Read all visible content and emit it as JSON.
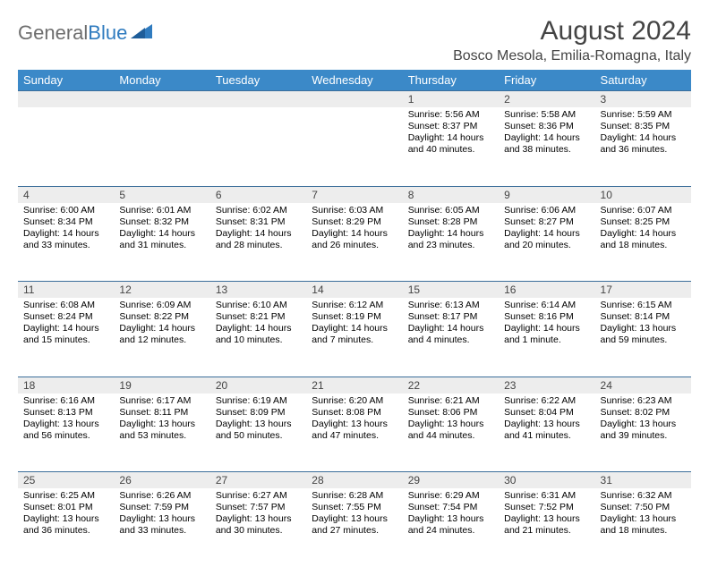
{
  "logo": {
    "part1": "General",
    "part2": "Blue"
  },
  "title": "August 2024",
  "location": "Bosco Mesola, Emilia-Romagna, Italy",
  "colors": {
    "header_bg": "#3b89c8",
    "header_text": "#ffffff",
    "daynum_bg": "#ededed",
    "row_border": "#3b6e9a",
    "logo_gray": "#6e6e6e",
    "logo_blue": "#2f7bbf",
    "title_color": "#444444",
    "body_text": "#000000"
  },
  "day_headers": [
    "Sunday",
    "Monday",
    "Tuesday",
    "Wednesday",
    "Thursday",
    "Friday",
    "Saturday"
  ],
  "weeks": [
    [
      null,
      null,
      null,
      null,
      {
        "num": "1",
        "sunrise": "5:56 AM",
        "sunset": "8:37 PM",
        "daylight": "14 hours and 40 minutes."
      },
      {
        "num": "2",
        "sunrise": "5:58 AM",
        "sunset": "8:36 PM",
        "daylight": "14 hours and 38 minutes."
      },
      {
        "num": "3",
        "sunrise": "5:59 AM",
        "sunset": "8:35 PM",
        "daylight": "14 hours and 36 minutes."
      }
    ],
    [
      {
        "num": "4",
        "sunrise": "6:00 AM",
        "sunset": "8:34 PM",
        "daylight": "14 hours and 33 minutes."
      },
      {
        "num": "5",
        "sunrise": "6:01 AM",
        "sunset": "8:32 PM",
        "daylight": "14 hours and 31 minutes."
      },
      {
        "num": "6",
        "sunrise": "6:02 AM",
        "sunset": "8:31 PM",
        "daylight": "14 hours and 28 minutes."
      },
      {
        "num": "7",
        "sunrise": "6:03 AM",
        "sunset": "8:29 PM",
        "daylight": "14 hours and 26 minutes."
      },
      {
        "num": "8",
        "sunrise": "6:05 AM",
        "sunset": "8:28 PM",
        "daylight": "14 hours and 23 minutes."
      },
      {
        "num": "9",
        "sunrise": "6:06 AM",
        "sunset": "8:27 PM",
        "daylight": "14 hours and 20 minutes."
      },
      {
        "num": "10",
        "sunrise": "6:07 AM",
        "sunset": "8:25 PM",
        "daylight": "14 hours and 18 minutes."
      }
    ],
    [
      {
        "num": "11",
        "sunrise": "6:08 AM",
        "sunset": "8:24 PM",
        "daylight": "14 hours and 15 minutes."
      },
      {
        "num": "12",
        "sunrise": "6:09 AM",
        "sunset": "8:22 PM",
        "daylight": "14 hours and 12 minutes."
      },
      {
        "num": "13",
        "sunrise": "6:10 AM",
        "sunset": "8:21 PM",
        "daylight": "14 hours and 10 minutes."
      },
      {
        "num": "14",
        "sunrise": "6:12 AM",
        "sunset": "8:19 PM",
        "daylight": "14 hours and 7 minutes."
      },
      {
        "num": "15",
        "sunrise": "6:13 AM",
        "sunset": "8:17 PM",
        "daylight": "14 hours and 4 minutes."
      },
      {
        "num": "16",
        "sunrise": "6:14 AM",
        "sunset": "8:16 PM",
        "daylight": "14 hours and 1 minute."
      },
      {
        "num": "17",
        "sunrise": "6:15 AM",
        "sunset": "8:14 PM",
        "daylight": "13 hours and 59 minutes."
      }
    ],
    [
      {
        "num": "18",
        "sunrise": "6:16 AM",
        "sunset": "8:13 PM",
        "daylight": "13 hours and 56 minutes."
      },
      {
        "num": "19",
        "sunrise": "6:17 AM",
        "sunset": "8:11 PM",
        "daylight": "13 hours and 53 minutes."
      },
      {
        "num": "20",
        "sunrise": "6:19 AM",
        "sunset": "8:09 PM",
        "daylight": "13 hours and 50 minutes."
      },
      {
        "num": "21",
        "sunrise": "6:20 AM",
        "sunset": "8:08 PM",
        "daylight": "13 hours and 47 minutes."
      },
      {
        "num": "22",
        "sunrise": "6:21 AM",
        "sunset": "8:06 PM",
        "daylight": "13 hours and 44 minutes."
      },
      {
        "num": "23",
        "sunrise": "6:22 AM",
        "sunset": "8:04 PM",
        "daylight": "13 hours and 41 minutes."
      },
      {
        "num": "24",
        "sunrise": "6:23 AM",
        "sunset": "8:02 PM",
        "daylight": "13 hours and 39 minutes."
      }
    ],
    [
      {
        "num": "25",
        "sunrise": "6:25 AM",
        "sunset": "8:01 PM",
        "daylight": "13 hours and 36 minutes."
      },
      {
        "num": "26",
        "sunrise": "6:26 AM",
        "sunset": "7:59 PM",
        "daylight": "13 hours and 33 minutes."
      },
      {
        "num": "27",
        "sunrise": "6:27 AM",
        "sunset": "7:57 PM",
        "daylight": "13 hours and 30 minutes."
      },
      {
        "num": "28",
        "sunrise": "6:28 AM",
        "sunset": "7:55 PM",
        "daylight": "13 hours and 27 minutes."
      },
      {
        "num": "29",
        "sunrise": "6:29 AM",
        "sunset": "7:54 PM",
        "daylight": "13 hours and 24 minutes."
      },
      {
        "num": "30",
        "sunrise": "6:31 AM",
        "sunset": "7:52 PM",
        "daylight": "13 hours and 21 minutes."
      },
      {
        "num": "31",
        "sunrise": "6:32 AM",
        "sunset": "7:50 PM",
        "daylight": "13 hours and 18 minutes."
      }
    ]
  ],
  "labels": {
    "sunrise": "Sunrise:",
    "sunset": "Sunset:",
    "daylight": "Daylight:"
  }
}
